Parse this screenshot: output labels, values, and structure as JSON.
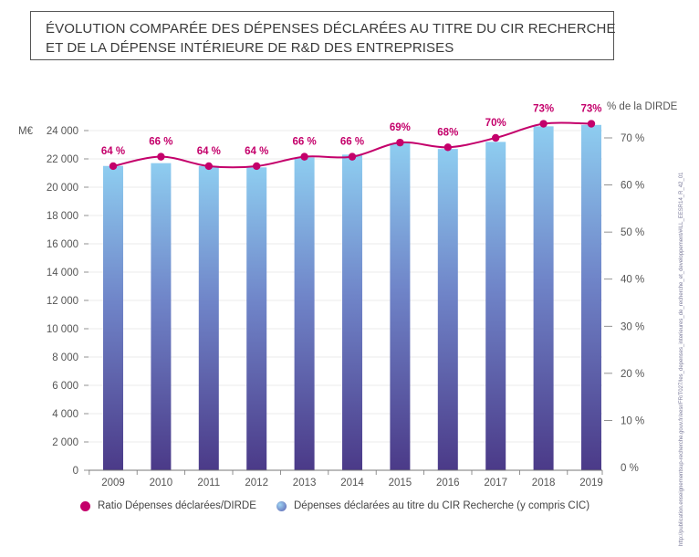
{
  "title": {
    "line1": "ÉVOLUTION COMPARÉE DES DÉPENSES DÉCLARÉES AU TITRE DU CIR RECHERCHE",
    "line2": "ET DE LA DÉPENSE INTÉRIEURE DE R&D DES ENTREPRISES"
  },
  "source_url": "http://publication.enseignementsup-recherche.gouv.fr/eesr/FR/T027/les_depenses_interieures_de_recherche_et_developpement/#ILL_EESR14_R_42_01",
  "colors": {
    "line": "#c4006b",
    "bar_top": "#8ecdf0",
    "bar_bottom": "#4b3a88",
    "axis_text": "#555555",
    "grid": "#e5e5e5"
  },
  "chart_data": {
    "type": "bar",
    "categories": [
      "2009",
      "2010",
      "2011",
      "2012",
      "2013",
      "2014",
      "2015",
      "2016",
      "2017",
      "2018",
      "2019"
    ],
    "y_left_unit": "M€",
    "y_left_ticks": [
      "0",
      "2 000",
      "4 000",
      "6 000",
      "8 000",
      "10 000",
      "12 000",
      "14 000",
      "16 000",
      "18 000",
      "20 000",
      "22 000",
      "24 000"
    ],
    "y_left_range": [
      0,
      24000
    ],
    "y_right_label": "% de la DIRDE",
    "y_right_ticks": [
      "0 %",
      "10 %",
      "20 %",
      "30 %",
      "40 %",
      "50 %",
      "60 %",
      "70 %"
    ],
    "y_right_range": [
      0,
      70
    ],
    "series": [
      {
        "name": "Dépenses déclarées au titre du CIR Recherche (y compris CIC)",
        "type": "bar",
        "axis": "left",
        "values": [
          21500,
          21700,
          21500,
          21400,
          22100,
          22300,
          23100,
          22700,
          23200,
          24300,
          24400
        ]
      },
      {
        "name": "Ratio Dépenses déclarées/DIRDE",
        "type": "line",
        "axis": "right",
        "values": [
          64,
          66,
          64,
          64,
          66,
          66,
          69,
          68,
          70,
          73,
          73
        ],
        "labels": [
          "64 %",
          "66 %",
          "64 %",
          "64 %",
          "66 %",
          "66 %",
          "69%",
          "68%",
          "70%",
          "73%",
          "73%"
        ]
      }
    ],
    "legend": [
      {
        "label": "Ratio Dépenses déclarées/DIRDE",
        "color": "#c4006b"
      },
      {
        "label": "Dépenses déclarées au titre du CIR Recherche (y compris CIC)",
        "color": "#6f84c8"
      }
    ]
  }
}
